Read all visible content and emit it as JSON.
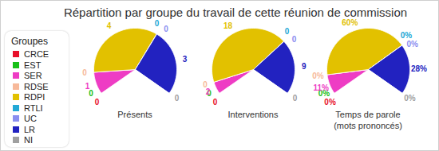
{
  "title": "Répartition par groupe du travail de cette réunion de commission",
  "legend_title": "Groupes",
  "legend": "left",
  "chart_data": [
    {
      "type": "pie",
      "title": "Présents",
      "categories": [
        "CRCE",
        "EST",
        "SER",
        "RDSE",
        "RDPI",
        "RTLI",
        "UC",
        "LR",
        "NI"
      ],
      "values": [
        0,
        0,
        1,
        0,
        4,
        0,
        0,
        3,
        0
      ],
      "colors": [
        "#e8102a",
        "#18c018",
        "#ee3cc4",
        "#f7b99a",
        "#e2c100",
        "#23a9d6",
        "#8a8ef0",
        "#2222c0",
        "#a0a0a0"
      ],
      "data_labels": true
    },
    {
      "type": "pie",
      "title": "Interventions",
      "categories": [
        "CRCE",
        "EST",
        "SER",
        "RDSE",
        "RDPI",
        "RTLI",
        "UC",
        "LR",
        "NI"
      ],
      "values": [
        0,
        0,
        2,
        0,
        18,
        0,
        0,
        9,
        0
      ],
      "colors": [
        "#e8102a",
        "#18c018",
        "#ee3cc4",
        "#f7b99a",
        "#e2c100",
        "#23a9d6",
        "#8a8ef0",
        "#2222c0",
        "#a0a0a0"
      ],
      "data_labels": true
    },
    {
      "type": "pie",
      "title": "Temps de parole\n(mots prononcés)",
      "categories": [
        "CRCE",
        "EST",
        "SER",
        "RDSE",
        "RDPI",
        "RTLI",
        "UC",
        "LR",
        "NI"
      ],
      "values": [
        0,
        0,
        11,
        0,
        60,
        0,
        0,
        28,
        0
      ],
      "value_labels": [
        "0%",
        "0%",
        "11%",
        "0%",
        "60%",
        "0%",
        "0%",
        "28%",
        "0%"
      ],
      "colors": [
        "#e8102a",
        "#18c018",
        "#ee3cc4",
        "#f7b99a",
        "#e2c100",
        "#23a9d6",
        "#8a8ef0",
        "#2222c0",
        "#a0a0a0"
      ],
      "data_labels": true
    }
  ]
}
